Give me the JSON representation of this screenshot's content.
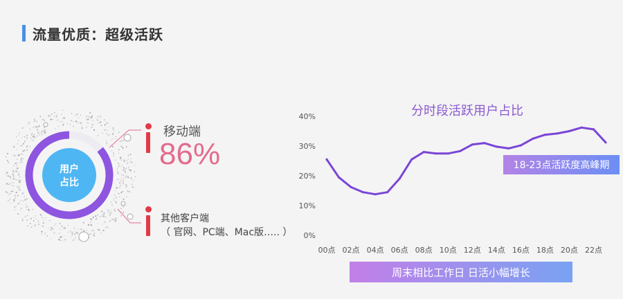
{
  "header": {
    "title": "流量优质：超级活跃"
  },
  "share": {
    "center_line1": "用户",
    "center_line2": "占比",
    "mobile_label": "移动端",
    "mobile_value": "86%",
    "mobile_fraction": 0.86,
    "other_label": "其他客户端",
    "other_desc": "（ 官网、PC端、Mac版….. ）"
  },
  "chart_data": {
    "type": "line",
    "title": "分时段活跃用户占比",
    "xlabel": "",
    "ylabel": "",
    "ylim": [
      0,
      40
    ],
    "y_ticks": [
      "0%",
      "10%",
      "20%",
      "30%",
      "40%"
    ],
    "x_tick_labels": [
      "00点",
      "02点",
      "04点",
      "06点",
      "08点",
      "10点",
      "12点",
      "14点",
      "16点",
      "18点",
      "20点",
      "22点"
    ],
    "x": [
      0,
      1,
      2,
      3,
      4,
      5,
      6,
      7,
      8,
      9,
      10,
      11,
      12,
      13,
      14,
      15,
      16,
      17,
      18,
      19,
      20,
      21,
      22,
      23
    ],
    "series": [
      {
        "values": [
          25.5,
          19.5,
          16.2,
          14.5,
          13.8,
          14.5,
          19,
          25.5,
          28,
          27.5,
          27.5,
          28.3,
          30.5,
          31,
          29.8,
          29.2,
          30.2,
          32.5,
          33.8,
          34.2,
          35,
          36.2,
          35.6,
          31.2
        ]
      }
    ],
    "annotations": [
      "18-23点活跃度高峰期",
      "周末相比工作日 日活小幅增长"
    ]
  },
  "colors": {
    "accent": "#4a8fe7",
    "line": "#7a45d6",
    "ring": "#8d55e0",
    "core": "#4fb6f4",
    "mobile_value": "#e46a8c",
    "marker": "#e23a46"
  }
}
